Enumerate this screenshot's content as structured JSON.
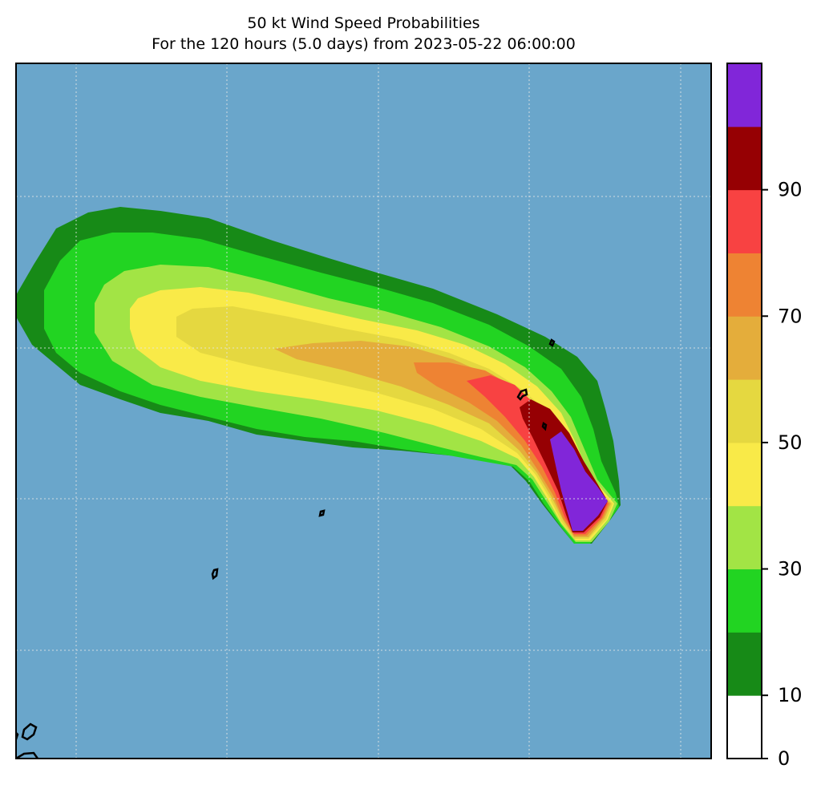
{
  "title": "50 kt Wind Speed Probabilities",
  "subtitle": "For the 120 hours (5.0 days) from 2023-05-22 06:00:00",
  "colors": {
    "ocean": "#6aa6cb",
    "coastline": "#000000",
    "gridline": "#e6e6e6"
  },
  "colorbar": {
    "ticks": [
      "0",
      "10",
      "30",
      "50",
      "70",
      "90"
    ],
    "levels": [
      {
        "from": 0,
        "to": 10,
        "color": "#ffffff"
      },
      {
        "from": 10,
        "to": 20,
        "color": "#178a17"
      },
      {
        "from": 20,
        "to": 30,
        "color": "#22d422"
      },
      {
        "from": 30,
        "to": 40,
        "color": "#a2e445"
      },
      {
        "from": 40,
        "to": 50,
        "color": "#f9ea48"
      },
      {
        "from": 50,
        "to": 60,
        "color": "#e5d840"
      },
      {
        "from": 60,
        "to": 70,
        "color": "#e4ad3b"
      },
      {
        "from": 70,
        "to": 80,
        "color": "#ee8333"
      },
      {
        "from": 80,
        "to": 90,
        "color": "#f84242"
      },
      {
        "from": 90,
        "to": 95,
        "color": "#960003"
      },
      {
        "from": 95,
        "to": 100,
        "color": "#8126d9"
      }
    ]
  }
}
